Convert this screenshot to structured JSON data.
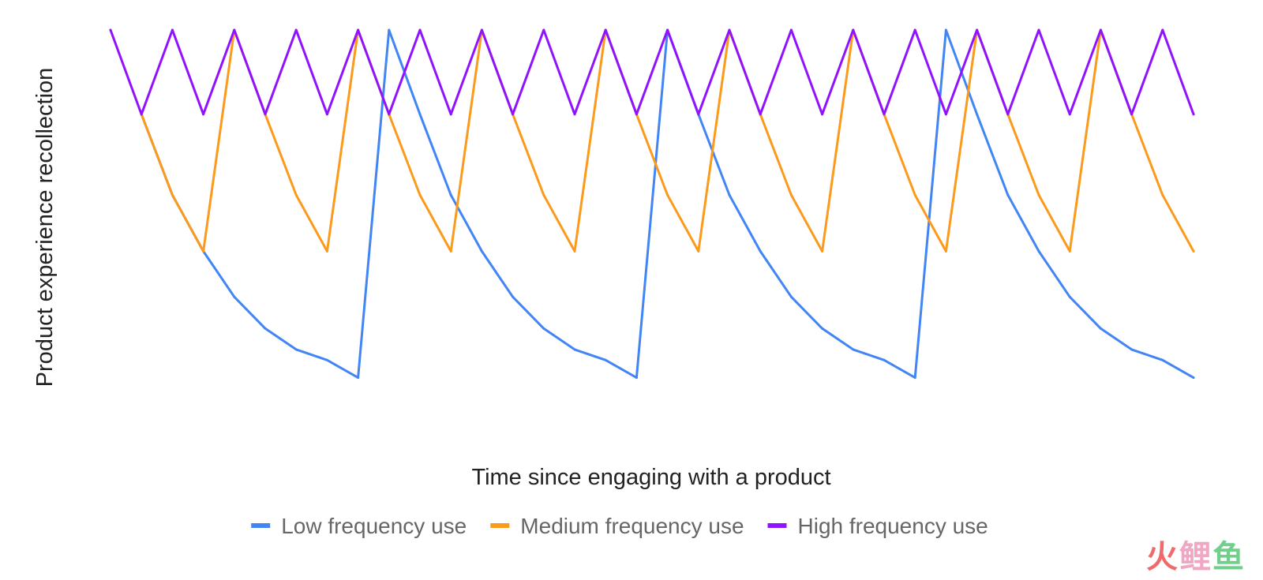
{
  "chart_data": {
    "type": "line",
    "xlabel": "Time since engaging with a product",
    "ylabel": "Product experience recollection",
    "xlim": [
      0,
      35
    ],
    "ylim": [
      0,
      1
    ],
    "grid": false,
    "legend": "bottom",
    "series": [
      {
        "name": "Low frequency use",
        "color": "#4285f4",
        "x": [
          1,
          2,
          3,
          4,
          5,
          6,
          7,
          8,
          9,
          10,
          11,
          12,
          13,
          14,
          15,
          16,
          17,
          18,
          19,
          20,
          21,
          22,
          23,
          24,
          25,
          26,
          27,
          28,
          29,
          30,
          31,
          32,
          33,
          34,
          35
        ],
        "y": [
          0.76,
          0.53,
          0.37,
          0.24,
          0.15,
          0.09,
          0.06,
          0.01,
          1.0,
          0.76,
          0.53,
          0.37,
          0.24,
          0.15,
          0.09,
          0.06,
          0.01,
          1.0,
          0.76,
          0.53,
          0.37,
          0.24,
          0.15,
          0.09,
          0.06,
          0.01,
          1.0,
          0.76,
          0.53,
          0.37,
          0.24,
          0.15,
          0.09,
          0.06,
          0.01
        ]
      },
      {
        "name": "Medium frequency use",
        "color": "#fb9a1b",
        "x": [
          1,
          2,
          3,
          4,
          5,
          6,
          7,
          8,
          9,
          10,
          11,
          12,
          13,
          14,
          15,
          16,
          17,
          18,
          19,
          20,
          21,
          22,
          23,
          24,
          25,
          26,
          27,
          28,
          29,
          30,
          31,
          32,
          33,
          34,
          35
        ],
        "y": [
          0.76,
          0.53,
          0.37,
          1.0,
          0.76,
          0.53,
          0.37,
          1.0,
          0.76,
          0.53,
          0.37,
          1.0,
          0.76,
          0.53,
          0.37,
          1.0,
          0.76,
          0.53,
          0.37,
          1.0,
          0.76,
          0.53,
          0.37,
          1.0,
          0.76,
          0.53,
          0.37,
          1.0,
          0.76,
          0.53,
          0.37,
          1.0,
          0.76,
          0.53,
          0.37
        ]
      },
      {
        "name": "High frequency use",
        "color": "#9012fe",
        "x": [
          0,
          1,
          2,
          3,
          4,
          5,
          6,
          7,
          8,
          9,
          10,
          11,
          12,
          13,
          14,
          15,
          16,
          17,
          18,
          19,
          20,
          21,
          22,
          23,
          24,
          25,
          26,
          27,
          28,
          29,
          30,
          31,
          32,
          33,
          34,
          35
        ],
        "y": [
          1.0,
          0.76,
          1.0,
          0.76,
          1.0,
          0.76,
          1.0,
          0.76,
          1.0,
          0.76,
          1.0,
          0.76,
          1.0,
          0.76,
          1.0,
          0.76,
          1.0,
          0.76,
          1.0,
          0.76,
          1.0,
          0.76,
          1.0,
          0.76,
          1.0,
          0.76,
          1.0,
          0.76,
          1.0,
          0.76,
          1.0,
          0.76,
          1.0,
          0.76,
          1.0,
          0.76
        ]
      }
    ]
  },
  "watermark": {
    "chars": [
      "火",
      "鲤",
      "鱼"
    ],
    "colors": [
      "#f06a6a",
      "#f2a6c4",
      "#6fcf8b"
    ]
  }
}
